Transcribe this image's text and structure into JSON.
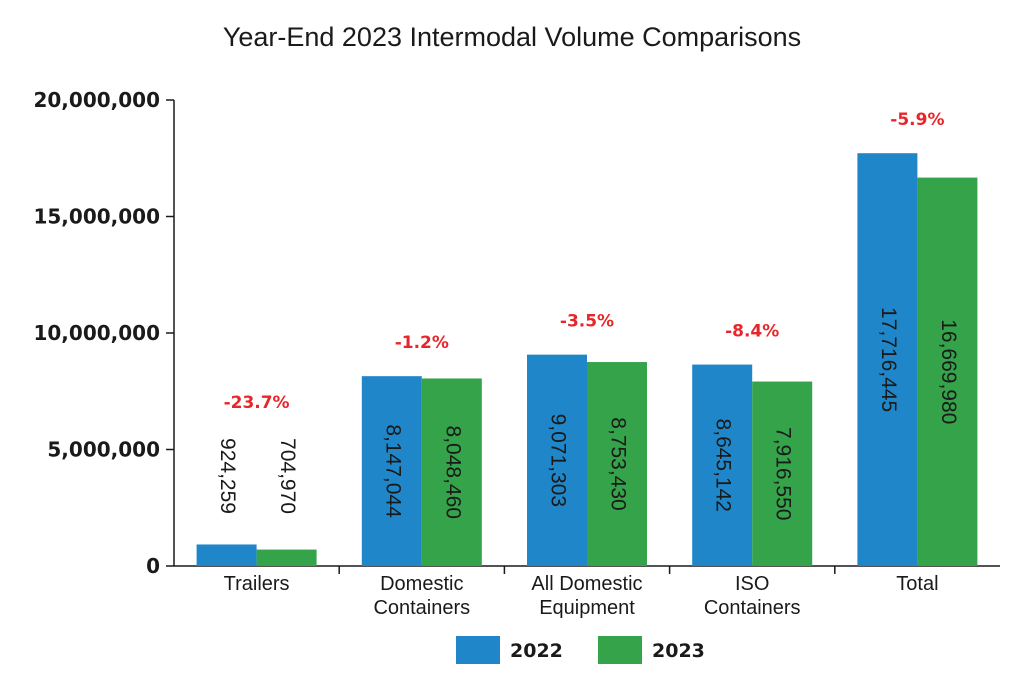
{
  "chart_data": {
    "type": "bar",
    "title": "Year-End 2023 Intermodal Volume Comparisons",
    "categories": [
      [
        "Trailers"
      ],
      [
        "Domestic",
        "Containers"
      ],
      [
        "All Domestic",
        "Equipment"
      ],
      [
        "ISO",
        "Containers"
      ],
      [
        "Total"
      ]
    ],
    "series": [
      {
        "name": "2022",
        "color": "#1f87c9",
        "values": [
          924259,
          8147044,
          9071303,
          8645142,
          17716445
        ],
        "labels": [
          "924,259",
          "8,147,044",
          "9,071,303",
          "8,645,142",
          "17,716,445"
        ]
      },
      {
        "name": "2023",
        "color": "#34a34a",
        "values": [
          704970,
          8048460,
          8753430,
          7916550,
          16669980
        ],
        "labels": [
          "704,970",
          "8,048,460",
          "8,753,430",
          "7,916,550",
          "16,669,980"
        ]
      }
    ],
    "changes": [
      "-23.7%",
      "-1.2%",
      "-3.5%",
      "-8.4%",
      "-5.9%"
    ],
    "change_color": "#e8262a",
    "ylim": [
      0,
      20000000
    ],
    "yticks": [
      {
        "value": 0,
        "label": "0"
      },
      {
        "value": 5000000,
        "label": "5,000,000"
      },
      {
        "value": 10000000,
        "label": "10,000,000"
      },
      {
        "value": 15000000,
        "label": "15,000,000"
      },
      {
        "value": 20000000,
        "label": "20,000,000"
      }
    ],
    "xlabel": "",
    "ylabel": "",
    "grid": false,
    "legend_position": "bottom-center"
  }
}
